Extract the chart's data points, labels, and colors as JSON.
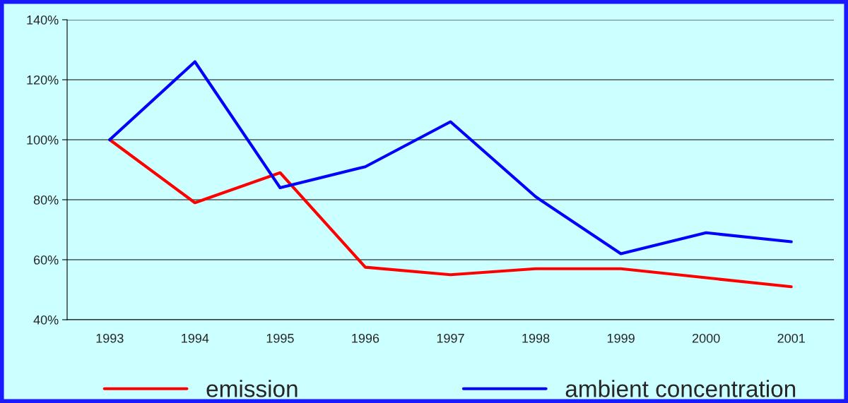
{
  "chart_data": {
    "type": "line",
    "categories": [
      "1993",
      "1994",
      "1995",
      "1996",
      "1997",
      "1998",
      "1999",
      "2000",
      "2001"
    ],
    "series": [
      {
        "name": "emission",
        "color": "#ff0000",
        "values": [
          100,
          79,
          89,
          57.5,
          55,
          57,
          57,
          54,
          51
        ]
      },
      {
        "name": "ambient concentration",
        "color": "#0000ff",
        "values": [
          100,
          126,
          84,
          91,
          106,
          81,
          62,
          69,
          66
        ]
      }
    ],
    "ylim": [
      40,
      140
    ],
    "yticks": [
      {
        "value": 40,
        "label": "40%"
      },
      {
        "value": 60,
        "label": "60%"
      },
      {
        "value": 80,
        "label": "80%"
      },
      {
        "value": 100,
        "label": "100%"
      },
      {
        "value": 120,
        "label": "120%"
      },
      {
        "value": 140,
        "label": "140%"
      }
    ],
    "grid": "y",
    "legend": "bottom",
    "marker": "none",
    "line_style": "solid"
  }
}
